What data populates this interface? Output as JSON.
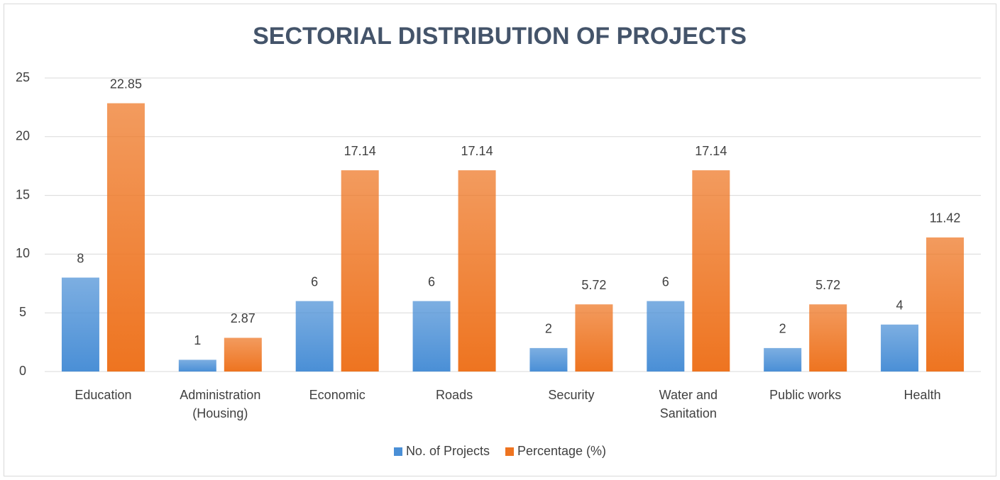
{
  "chart_data": {
    "type": "bar",
    "title": "SECTORIAL DISTRIBUTION OF PROJECTS",
    "categories": [
      "Education",
      "Administration (Housing)",
      "Economic",
      "Roads",
      "Security",
      "Water and Sanitation",
      "Public works",
      "Health"
    ],
    "series": [
      {
        "name": "No. of Projects",
        "color": "#4a8fd6",
        "values": [
          8,
          1,
          6,
          6,
          2,
          6,
          2,
          4
        ]
      },
      {
        "name": "Percentage (%)",
        "color": "#ee7420",
        "values": [
          22.85,
          2.87,
          17.14,
          17.14,
          5.72,
          17.14,
          5.72,
          11.42
        ]
      }
    ],
    "ylim": [
      0,
      25
    ],
    "yticks": [
      0,
      5,
      10,
      15,
      20,
      25
    ],
    "grid": true,
    "legend": "bottom"
  }
}
